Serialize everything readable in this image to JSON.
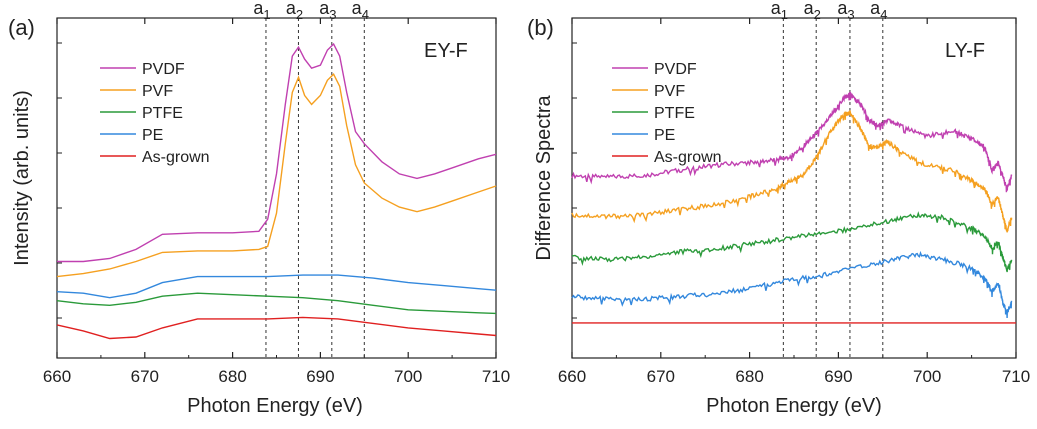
{
  "chart_data": [
    {
      "type": "line",
      "panel_label": "(a)",
      "mode_label": "EY-F",
      "xlabel": "Photon Energy (eV)",
      "ylabel": "Intensity (arb. units)",
      "xlim": [
        660,
        710
      ],
      "xticks": [
        660,
        670,
        680,
        690,
        700,
        710
      ],
      "ylim": [
        0,
        1
      ],
      "y_tick_labels": "none",
      "grid": false,
      "legend_position": "top-left",
      "marker_lines": [
        {
          "label": "a",
          "sub": "1",
          "x": 683.8
        },
        {
          "label": "a",
          "sub": "2",
          "x": 687.5
        },
        {
          "label": "a",
          "sub": "3",
          "x": 691.3
        },
        {
          "label": "a",
          "sub": "4",
          "x": 695.0
        }
      ],
      "series": [
        {
          "name": "PVDF",
          "color": "#c040b0",
          "x": [
            660,
            663,
            666,
            669,
            672,
            676,
            680,
            683,
            684,
            685,
            686,
            686.8,
            687.5,
            688.2,
            689,
            690,
            690.8,
            691.5,
            692.2,
            693,
            694,
            695,
            697,
            699,
            701,
            703,
            705,
            708,
            710
          ],
          "y": [
            0.26,
            0.26,
            0.27,
            0.3,
            0.35,
            0.355,
            0.355,
            0.36,
            0.4,
            0.55,
            0.78,
            0.94,
            0.97,
            0.93,
            0.9,
            0.91,
            0.96,
            0.98,
            0.94,
            0.82,
            0.69,
            0.65,
            0.59,
            0.55,
            0.535,
            0.55,
            0.57,
            0.6,
            0.615
          ]
        },
        {
          "name": "PVF",
          "color": "#f5a020",
          "x": [
            660,
            663,
            666,
            669,
            672,
            676,
            680,
            683,
            684,
            685,
            686,
            686.8,
            687.5,
            688.2,
            689,
            690,
            690.8,
            691.5,
            692.2,
            693,
            694,
            695,
            697,
            699,
            701,
            703,
            705,
            708,
            710
          ],
          "y": [
            0.21,
            0.22,
            0.235,
            0.26,
            0.29,
            0.295,
            0.295,
            0.3,
            0.31,
            0.42,
            0.65,
            0.82,
            0.87,
            0.81,
            0.78,
            0.81,
            0.86,
            0.88,
            0.84,
            0.71,
            0.58,
            0.52,
            0.47,
            0.44,
            0.425,
            0.44,
            0.46,
            0.49,
            0.51
          ]
        },
        {
          "name": "PTFE",
          "color": "#2a9a3a",
          "x": [
            660,
            663,
            666,
            669,
            672,
            676,
            680,
            684,
            688,
            692,
            696,
            700,
            704,
            708,
            710
          ],
          "y": [
            0.13,
            0.12,
            0.115,
            0.125,
            0.145,
            0.155,
            0.15,
            0.145,
            0.14,
            0.13,
            0.115,
            0.1,
            0.095,
            0.09,
            0.088
          ]
        },
        {
          "name": "PE",
          "color": "#3388dd",
          "x": [
            660,
            663,
            666,
            669,
            672,
            676,
            680,
            684,
            688,
            692,
            696,
            700,
            704,
            708,
            710
          ],
          "y": [
            0.16,
            0.155,
            0.14,
            0.155,
            0.19,
            0.21,
            0.21,
            0.21,
            0.215,
            0.215,
            0.205,
            0.19,
            0.18,
            0.17,
            0.165
          ]
        },
        {
          "name": "As-grown",
          "color": "#e02020",
          "x": [
            660,
            663,
            666,
            669,
            672,
            676,
            680,
            684,
            688,
            692,
            696,
            700,
            704,
            708,
            710
          ],
          "y": [
            0.05,
            0.03,
            0.005,
            0.01,
            0.04,
            0.07,
            0.07,
            0.07,
            0.075,
            0.07,
            0.055,
            0.04,
            0.03,
            0.02,
            0.015
          ]
        }
      ]
    },
    {
      "type": "line",
      "panel_label": "(b)",
      "mode_label": "LY-F",
      "xlabel": "Photon Energy (eV)",
      "ylabel": "Difference Spectra",
      "xlim": [
        660,
        710
      ],
      "xticks": [
        660,
        670,
        680,
        690,
        700,
        710
      ],
      "ylim": [
        0,
        1
      ],
      "y_tick_labels": "none",
      "grid": false,
      "legend_position": "top-left",
      "marker_lines": [
        {
          "label": "a",
          "sub": "1",
          "x": 683.8
        },
        {
          "label": "a",
          "sub": "2",
          "x": 687.5
        },
        {
          "label": "a",
          "sub": "3",
          "x": 691.3
        },
        {
          "label": "a",
          "sub": "4",
          "x": 695.0
        }
      ],
      "series": [
        {
          "name": "PVDF",
          "color": "#c040b0",
          "x": [
            660,
            664,
            668,
            672,
            676,
            680,
            683,
            684.5,
            686,
            687.5,
            689,
            690.5,
            691.3,
            692.5,
            693.5,
            694.5,
            695.5,
            697,
            700,
            703,
            705,
            706.5,
            707.3,
            708,
            708.5,
            709,
            709.5
          ],
          "y": [
            0.53,
            0.525,
            0.53,
            0.55,
            0.57,
            0.58,
            0.59,
            0.6,
            0.64,
            0.69,
            0.75,
            0.82,
            0.84,
            0.8,
            0.74,
            0.72,
            0.74,
            0.72,
            0.68,
            0.7,
            0.67,
            0.64,
            0.55,
            0.58,
            0.53,
            0.48,
            0.53
          ]
        },
        {
          "name": "PVF",
          "color": "#f5a020",
          "x": [
            660,
            664,
            668,
            672,
            676,
            680,
            683,
            684.5,
            686,
            687.5,
            689,
            690.5,
            691.3,
            692.5,
            693.5,
            694.5,
            695.5,
            697,
            700,
            703,
            705,
            706.5,
            707.3,
            708,
            708.5,
            709,
            709.5
          ],
          "y": [
            0.38,
            0.375,
            0.38,
            0.4,
            0.42,
            0.45,
            0.48,
            0.51,
            0.53,
            0.6,
            0.69,
            0.76,
            0.77,
            0.71,
            0.64,
            0.64,
            0.66,
            0.62,
            0.57,
            0.55,
            0.51,
            0.48,
            0.42,
            0.45,
            0.38,
            0.32,
            0.37
          ]
        },
        {
          "name": "PTFE",
          "color": "#2a9a3a",
          "x": [
            660,
            664,
            668,
            672,
            676,
            680,
            684,
            688,
            692,
            696,
            699,
            702,
            705,
            706.5,
            707.3,
            708,
            708.5,
            709,
            709.5
          ],
          "y": [
            0.22,
            0.21,
            0.22,
            0.24,
            0.25,
            0.27,
            0.29,
            0.31,
            0.33,
            0.36,
            0.38,
            0.37,
            0.33,
            0.3,
            0.25,
            0.28,
            0.22,
            0.17,
            0.21
          ]
        },
        {
          "name": "PE",
          "color": "#3388dd",
          "x": [
            660,
            664,
            668,
            672,
            676,
            680,
            684,
            688,
            692,
            696,
            699,
            702,
            705,
            706.5,
            707.3,
            708,
            708.5,
            709,
            709.5
          ],
          "y": [
            0.07,
            0.06,
            0.06,
            0.07,
            0.08,
            0.1,
            0.13,
            0.15,
            0.18,
            0.21,
            0.23,
            0.21,
            0.18,
            0.14,
            0.09,
            0.12,
            0.05,
            0.01,
            0.05
          ]
        },
        {
          "name": "As-grown",
          "color": "#e02020",
          "x": [
            660,
            710
          ],
          "y": [
            -0.03,
            -0.03
          ]
        }
      ]
    }
  ]
}
